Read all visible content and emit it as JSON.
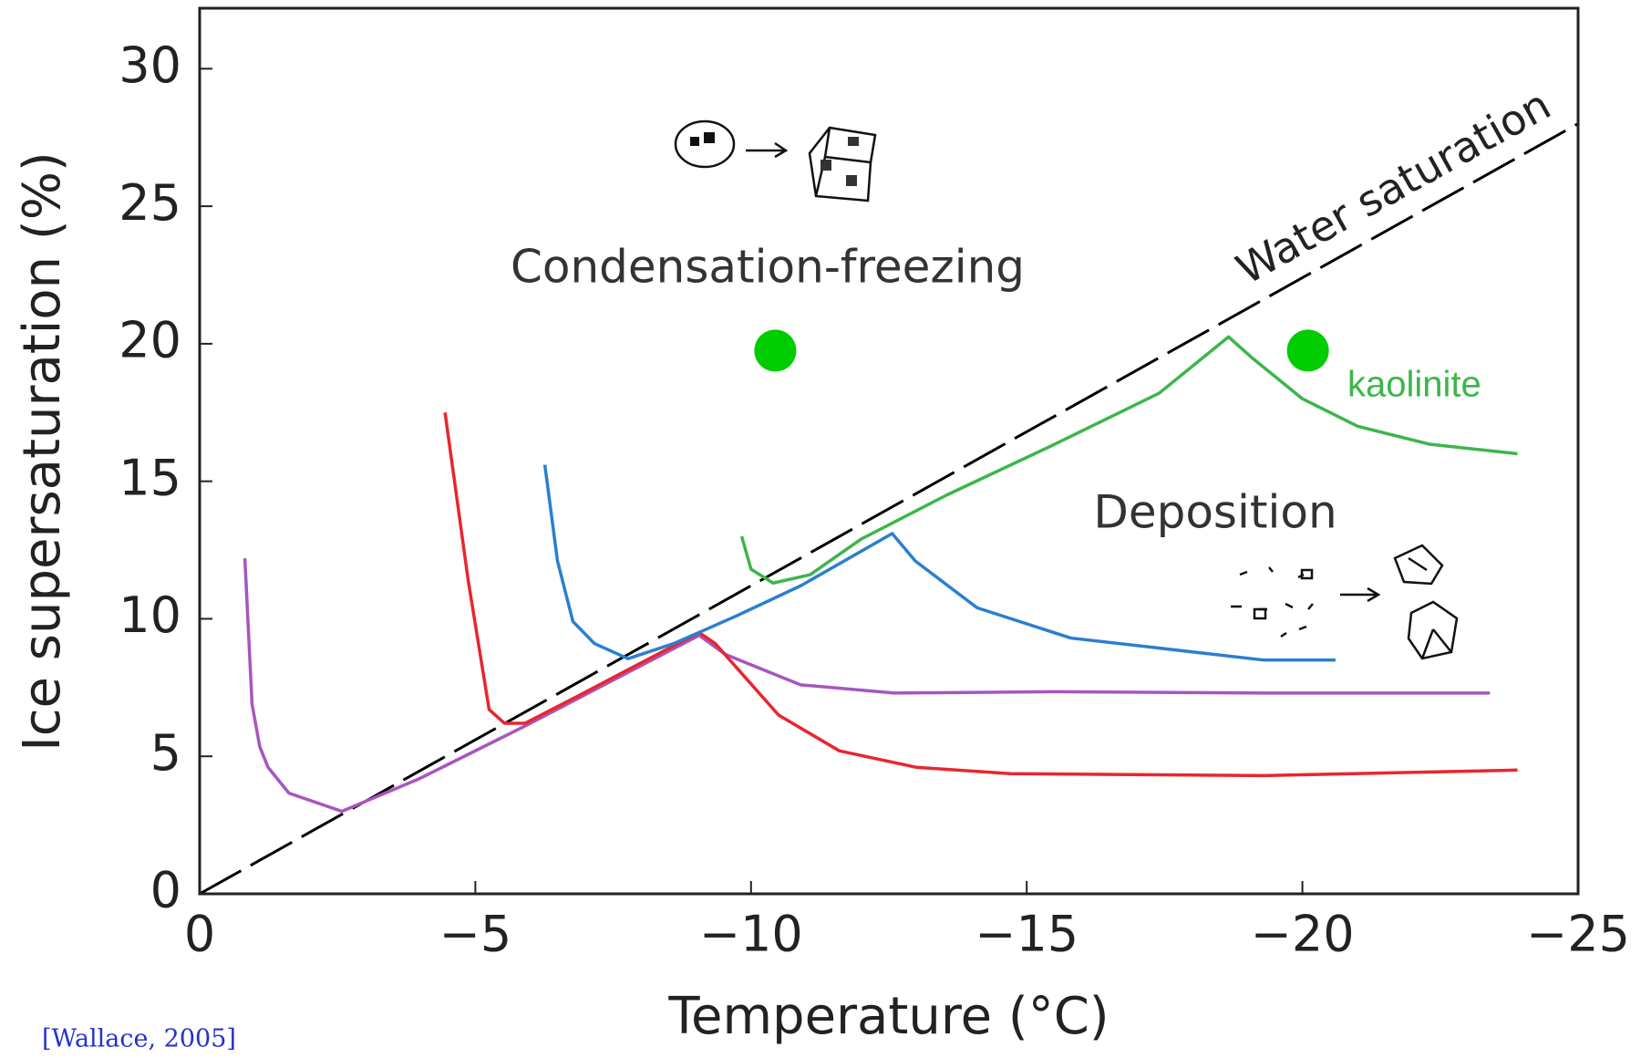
{
  "chart_data": {
    "type": "line",
    "xlabel": "Temperature (°C)",
    "ylabel": "Ice supersaturation (%)",
    "xlim": [
      0,
      -25
    ],
    "ylim": [
      0,
      32.2
    ],
    "xticks": [
      0,
      {
        "value": -5,
        "label": "−5"
      },
      {
        "value": -10,
        "label": "−10"
      },
      {
        "value": -15,
        "label": "−15"
      },
      {
        "value": -20,
        "label": "−20"
      },
      {
        "value": -25,
        "label": "−25"
      }
    ],
    "yticks": [
      0,
      5,
      10,
      15,
      20,
      25,
      30
    ],
    "series": [
      {
        "name": "Water saturation",
        "color": "#000000",
        "dash": true,
        "x": [
          0,
          -25
        ],
        "values": [
          0,
          28
        ]
      },
      {
        "color": "#a855c0",
        "x": [
          -0.82,
          -0.95,
          -1.09,
          -1.24,
          -1.62,
          -2.58,
          -4.0,
          -5.9,
          -9.06,
          -9.54,
          -10.9,
          -12.6,
          -15.5,
          -19.3,
          -23.4
        ],
        "values": [
          12.2,
          6.9,
          5.35,
          4.6,
          3.66,
          3.0,
          4.2,
          6.1,
          9.4,
          8.7,
          7.6,
          7.3,
          7.35,
          7.3,
          7.3
        ]
      },
      {
        "color": "#e8262e",
        "x": [
          -4.45,
          -4.87,
          -5.25,
          -5.53,
          -5.9,
          -6.87,
          -7.82,
          -9.06,
          -9.35,
          -10.5,
          -11.6,
          -13.0,
          -14.7,
          -19.3,
          -23.9
        ],
        "values": [
          17.5,
          11.4,
          6.7,
          6.2,
          6.2,
          7.2,
          8.2,
          9.5,
          9.1,
          6.5,
          5.2,
          4.6,
          4.37,
          4.3,
          4.5
        ]
      },
      {
        "color": "#2a7fd0",
        "x": [
          -6.26,
          -6.49,
          -6.77,
          -7.16,
          -7.77,
          -8.6,
          -9.73,
          -10.9,
          -12.56,
          -12.98,
          -14.1,
          -15.8,
          -19.3,
          -20.6
        ],
        "values": [
          15.6,
          12.1,
          9.9,
          9.1,
          8.55,
          9.1,
          10.1,
          11.2,
          13.1,
          12.1,
          10.4,
          9.3,
          8.5,
          8.5
        ]
      },
      {
        "name": "kaolinite",
        "color": "#3cb64a",
        "x": [
          -9.83,
          -10.0,
          -10.4,
          -11.07,
          -12.0,
          -13.55,
          -15.46,
          -17.4,
          -18.66,
          -19.08,
          -20.0,
          -21.0,
          -22.3,
          -23.9
        ],
        "values": [
          13.0,
          11.8,
          11.3,
          11.6,
          12.9,
          14.5,
          16.3,
          18.2,
          20.25,
          19.5,
          18.0,
          17.0,
          16.35,
          16.0
        ]
      }
    ],
    "points": {
      "color": "#00cc00",
      "x": [
        -10.44,
        -20.1
      ],
      "values": [
        19.75,
        19.75
      ]
    },
    "annotations": [
      "Condensation-freezing",
      "Deposition",
      "[Wallace, 2005]"
    ]
  }
}
